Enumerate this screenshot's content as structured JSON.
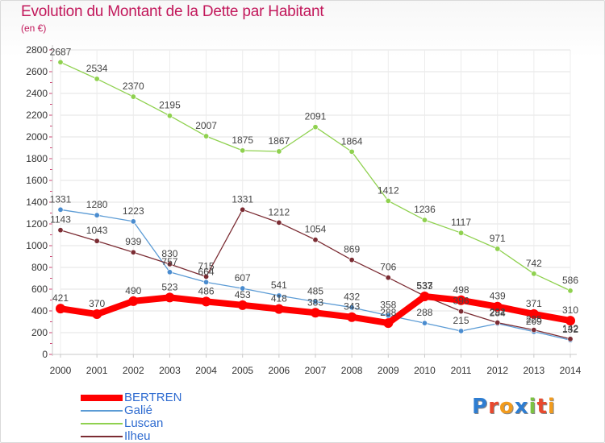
{
  "title": "Evolution du Montant de la Dette par Habitant",
  "unit_label": "(en €)",
  "logo": {
    "text": "Proxiti",
    "letters": [
      "P",
      "r",
      "o",
      "x",
      "i",
      "t",
      "i"
    ],
    "colors": [
      "#2e7dd1",
      "#e8492e",
      "#f29b1d",
      "#2e7dd1",
      "#7cc242",
      "#e8492e",
      "#f29b1d"
    ]
  },
  "chart_data": {
    "type": "line",
    "x": [
      "2000",
      "2001",
      "2002",
      "2003",
      "2004",
      "2005",
      "2006",
      "2007",
      "2008",
      "2009",
      "2010",
      "2011",
      "2012",
      "2013",
      "2014"
    ],
    "ylim": [
      0,
      2800
    ],
    "yticks": [
      "0",
      "200",
      "400",
      "600",
      "800",
      "1000",
      "1200",
      "1400",
      "1600",
      "1800",
      "2000",
      "2200",
      "2400",
      "2600",
      "2800"
    ],
    "grid": true,
    "legend_position": "bottom-left",
    "series": [
      {
        "name": "BERTREN",
        "color": "#ff0000",
        "width": 8,
        "dot": "#ff0000",
        "values": [
          421,
          370,
          490,
          523,
          486,
          453,
          418,
          383,
          343,
          288,
          533,
          498,
          439,
          371,
          310
        ]
      },
      {
        "name": "Galié",
        "color": "#5b9bd5",
        "width": 1.3,
        "dot": "#4a8ccf",
        "values": [
          1331,
          1280,
          1223,
          757,
          664,
          607,
          541,
          485,
          432,
          358,
          288,
          215,
          284,
          209,
          132
        ]
      },
      {
        "name": "Luscan",
        "color": "#8fd14f",
        "width": 1.3,
        "dot": "#8fd14f",
        "values": [
          2687,
          2534,
          2370,
          2195,
          2007,
          1875,
          1867,
          2091,
          1864,
          1412,
          1236,
          1117,
          971,
          742,
          586
        ]
      },
      {
        "name": "Ilheu",
        "color": "#7b2c33",
        "width": 1.3,
        "dot": "#7b2c33",
        "values": [
          1143,
          1043,
          939,
          830,
          715,
          1331,
          1212,
          1054,
          869,
          706,
          537,
          396,
          292,
          225,
          142
        ]
      }
    ]
  }
}
